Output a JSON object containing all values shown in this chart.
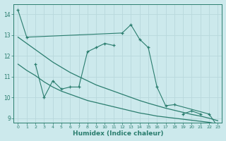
{
  "xlabel": "Humidex (Indice chaleur)",
  "background_color": "#cce9ec",
  "grid_color": "#b8d8dc",
  "line_color": "#2a7d6e",
  "xlim": [
    -0.5,
    23.5
  ],
  "ylim": [
    8.8,
    14.5
  ],
  "yticks": [
    9,
    10,
    11,
    12,
    13,
    14
  ],
  "xticks": [
    0,
    1,
    2,
    3,
    4,
    5,
    6,
    7,
    8,
    9,
    10,
    11,
    12,
    13,
    14,
    15,
    16,
    17,
    18,
    19,
    20,
    21,
    22,
    23
  ],
  "series1": {
    "x": [
      0,
      1,
      12,
      13,
      14,
      15,
      16,
      17,
      18,
      22,
      23
    ],
    "y": [
      14.2,
      12.9,
      13.1,
      13.5,
      12.8,
      12.4,
      10.5,
      9.6,
      9.65,
      9.2,
      8.6
    ]
  },
  "series2": {
    "segments": [
      {
        "x": [
          2,
          3,
          4,
          5,
          6,
          7,
          8,
          9,
          10,
          11
        ],
        "y": [
          11.6,
          10.0,
          10.8,
          10.4,
          10.5,
          10.5,
          12.2,
          12.4,
          12.6,
          12.5
        ]
      },
      {
        "x": [
          19,
          20,
          21
        ],
        "y": [
          9.2,
          9.35,
          9.2
        ]
      }
    ]
  },
  "series3": {
    "x": [
      0,
      1,
      2,
      3,
      4,
      5,
      6,
      7,
      8,
      9,
      10,
      11,
      12,
      13,
      14,
      15,
      16,
      17,
      18,
      19,
      20,
      21,
      22,
      23
    ],
    "y": [
      11.6,
      11.3,
      11.05,
      10.75,
      10.5,
      10.3,
      10.15,
      10.0,
      9.85,
      9.75,
      9.65,
      9.55,
      9.45,
      9.35,
      9.25,
      9.18,
      9.1,
      9.05,
      9.0,
      8.95,
      8.9,
      8.85,
      8.8,
      8.72
    ]
  },
  "series4": {
    "x": [
      0,
      1,
      2,
      3,
      4,
      5,
      6,
      7,
      8,
      9,
      10,
      11,
      12,
      13,
      14,
      15,
      16,
      17,
      18,
      19,
      20,
      21,
      22,
      23
    ],
    "y": [
      12.9,
      12.6,
      12.3,
      12.0,
      11.7,
      11.45,
      11.2,
      11.0,
      10.8,
      10.6,
      10.45,
      10.3,
      10.15,
      10.0,
      9.85,
      9.72,
      9.6,
      9.48,
      9.38,
      9.28,
      9.18,
      9.1,
      9.0,
      8.88
    ]
  }
}
